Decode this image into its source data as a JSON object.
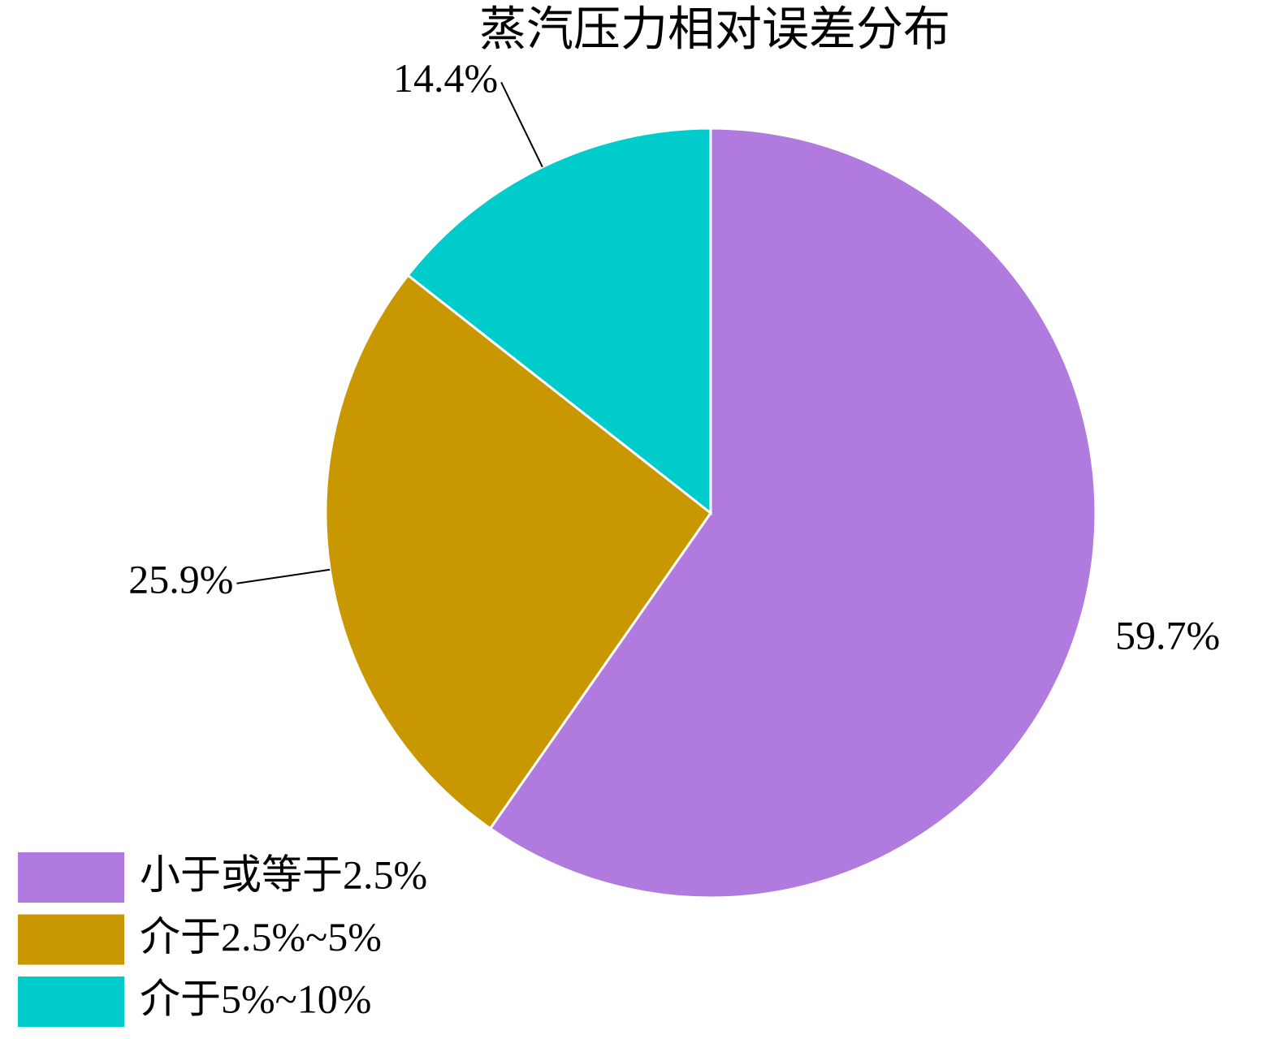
{
  "chart_data": {
    "type": "pie",
    "title": "蒸汽压力相对误差分布",
    "categories": [
      "小于或等于2.5%",
      "介于2.5%~5%",
      "介于5%~10%"
    ],
    "values": [
      59.7,
      25.9,
      14.4
    ],
    "value_labels": [
      "59.7%",
      "25.9%",
      "14.4%"
    ],
    "colors": [
      "#b07ade",
      "#c99700",
      "#00cccc"
    ],
    "legend": "lower left"
  }
}
